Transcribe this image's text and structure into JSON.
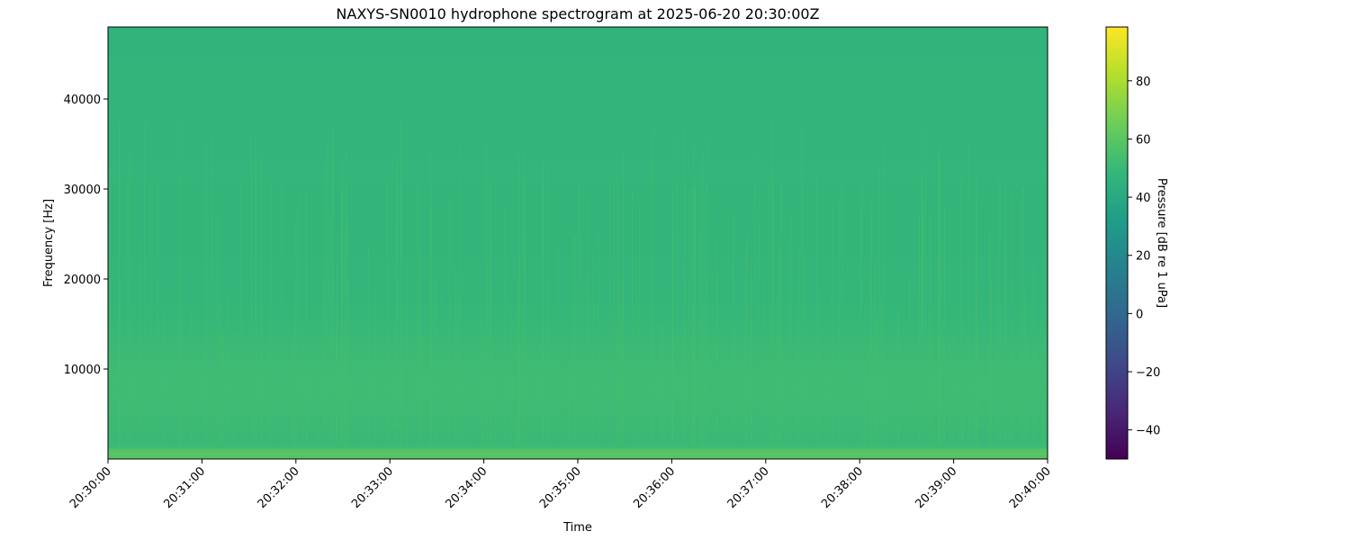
{
  "chart_data": {
    "type": "heatmap",
    "title": "NAXYS-SN0010 hydrophone spectrogram at 2025-06-20 20:30:00Z",
    "xlabel": "Time",
    "ylabel": "Frequency [Hz]",
    "colorbar_label": "Pressure [dB re 1 uPa]",
    "colormap": "viridis",
    "clim": [
      -50,
      98.5
    ],
    "xlim": [
      "20:30:00",
      "20:40:00"
    ],
    "ylim": [
      0,
      48000
    ],
    "x_ticks": [
      "20:30:00",
      "20:31:00",
      "20:32:00",
      "20:33:00",
      "20:34:00",
      "20:35:00",
      "20:36:00",
      "20:37:00",
      "20:38:00",
      "20:39:00",
      "20:40:00"
    ],
    "y_ticks": [
      10000,
      20000,
      30000,
      40000
    ],
    "colorbar_ticks": [
      -40,
      -20,
      0,
      20,
      40,
      60,
      80
    ],
    "frequency_profile": {
      "frequency_hz": [
        0,
        500,
        1000,
        1500,
        4000,
        8000,
        12000,
        16000,
        20000,
        30000,
        40000,
        48000
      ],
      "level_db": [
        58,
        60,
        58,
        50,
        51,
        52,
        51,
        49,
        48,
        47.5,
        47,
        46.5
      ]
    },
    "grid": false,
    "legend": "colorbar-right"
  }
}
